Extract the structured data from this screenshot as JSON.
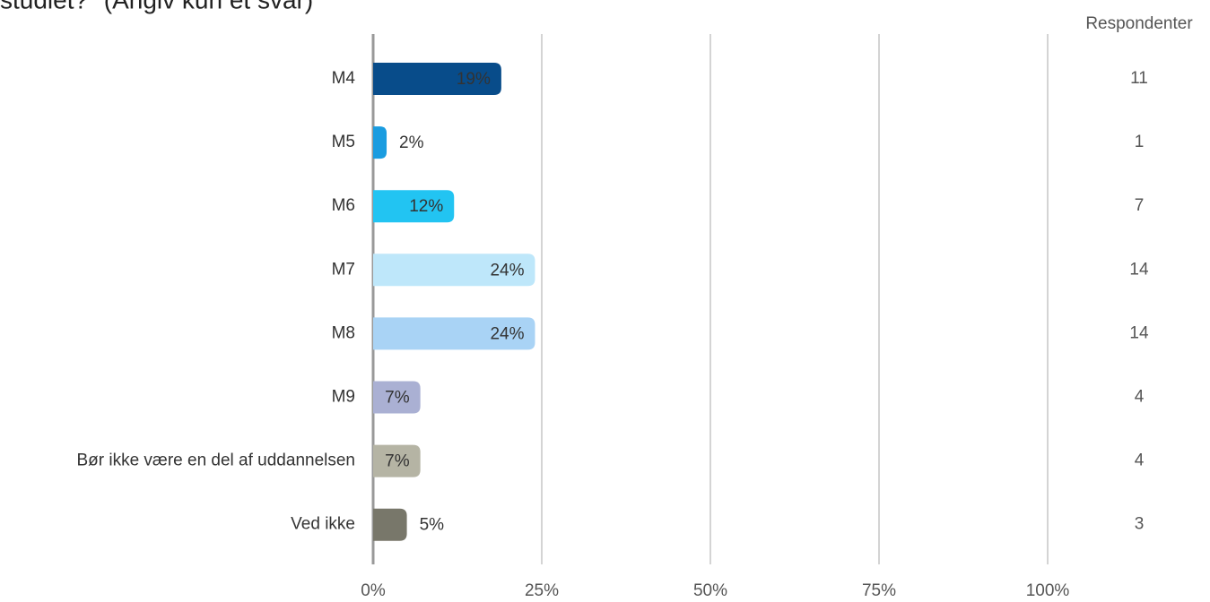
{
  "chart_data": {
    "type": "bar",
    "orientation": "horizontal",
    "title": "studiet?\" (Angiv kun ét svar)",
    "categories": [
      "M4",
      "M5",
      "M6",
      "M7",
      "M8",
      "M9",
      "Bør ikke være en del af uddannelsen",
      "Ved ikke"
    ],
    "values": [
      19,
      2,
      12,
      24,
      24,
      7,
      7,
      5
    ],
    "value_labels": [
      "19%",
      "2%",
      "12%",
      "24%",
      "24%",
      "7%",
      "7%",
      "5%"
    ],
    "colors": [
      "#084c8a",
      "#1a9ce0",
      "#22c4f2",
      "#bee7fa",
      "#a9d3f5",
      "#aab0d3",
      "#b5b4a4",
      "#78776a"
    ],
    "xlim": [
      0,
      100
    ],
    "xticks": [
      {
        "value": 0,
        "label": "0%"
      },
      {
        "value": 25,
        "label": "25%"
      },
      {
        "value": 50,
        "label": "50%"
      },
      {
        "value": 75,
        "label": "75%"
      },
      {
        "value": 100,
        "label": "100%"
      }
    ],
    "grid": true,
    "respondents": {
      "label": "Respondenter",
      "values": [
        11,
        1,
        7,
        14,
        14,
        4,
        4,
        3
      ]
    }
  }
}
